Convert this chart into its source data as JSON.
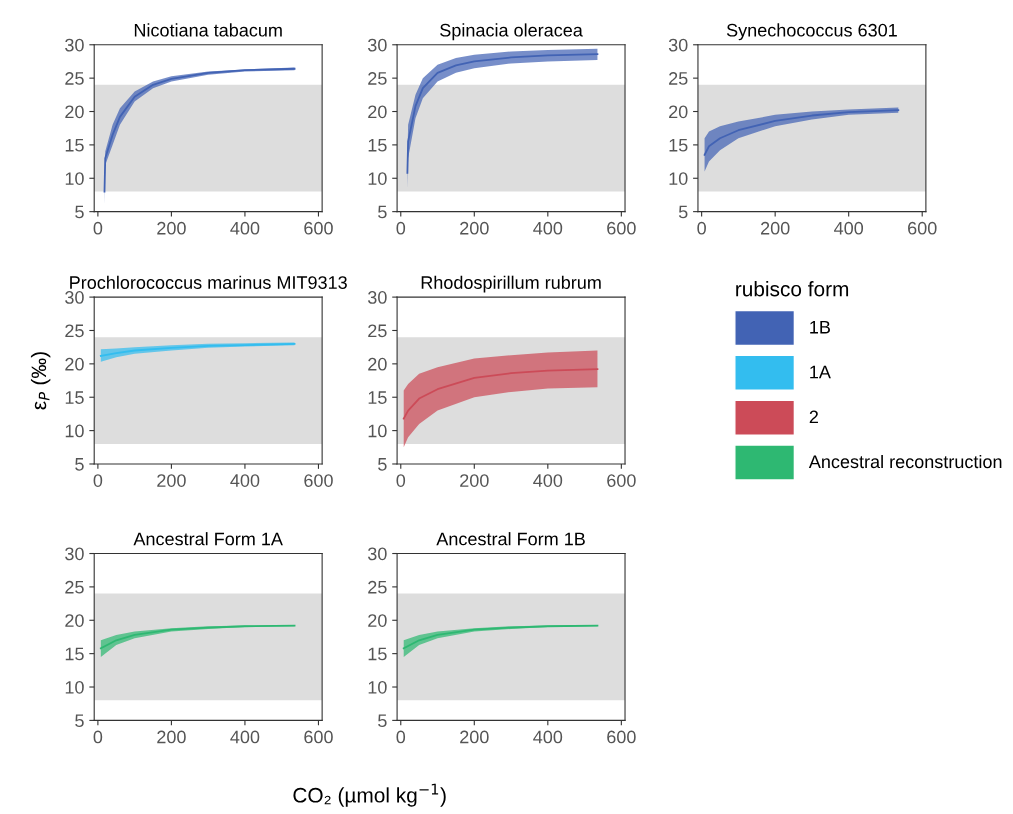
{
  "chart_data": [
    {
      "type": "line",
      "title": "Nicotiana tabacum",
      "xlim": [
        -10,
        610
      ],
      "ylim": [
        5,
        30
      ],
      "xticks": [
        0,
        200,
        400,
        600
      ],
      "yticks": [
        5,
        10,
        15,
        20,
        25,
        30
      ],
      "bands": [
        {
          "axis": "y",
          "from": 8,
          "to": 24,
          "color": "#dddddd"
        }
      ],
      "series": [
        {
          "name": "1B",
          "color": "#4263b4",
          "x": [
            18,
            20,
            40,
            60,
            100,
            150,
            200,
            300,
            400,
            535
          ],
          "lower": [
            6,
            12,
            15,
            18,
            21.5,
            23.5,
            24.5,
            25.5,
            26,
            26.2
          ],
          "upper": [
            10,
            14,
            18,
            20.5,
            23,
            24.5,
            25.3,
            26,
            26.3,
            26.6
          ],
          "values": [
            8,
            13,
            16.5,
            19.2,
            22.2,
            24,
            24.9,
            25.8,
            26.2,
            26.4
          ]
        }
      ]
    },
    {
      "type": "line",
      "title": "Spinacia oleracea",
      "xlim": [
        -10,
        610
      ],
      "ylim": [
        5,
        30
      ],
      "xticks": [
        0,
        200,
        400,
        600
      ],
      "yticks": [
        5,
        10,
        15,
        20,
        25,
        30
      ],
      "bands": [
        {
          "axis": "y",
          "from": 8,
          "to": 24,
          "color": "#dddddd"
        }
      ],
      "series": [
        {
          "name": "1B",
          "color": "#4263b4",
          "x": [
            18,
            20,
            40,
            60,
            100,
            150,
            200,
            300,
            400,
            535
          ],
          "lower": [
            8.5,
            13,
            19,
            22,
            24.5,
            25.8,
            26.5,
            27.2,
            27.5,
            27.7
          ],
          "upper": [
            13,
            18,
            22.5,
            25,
            27,
            28,
            28.5,
            29,
            29.2,
            29.4
          ],
          "values": [
            10.8,
            15.5,
            20.8,
            23.5,
            25.8,
            26.9,
            27.5,
            28.1,
            28.4,
            28.6
          ]
        }
      ]
    },
    {
      "type": "line",
      "title": "Synechococcus 6301",
      "xlim": [
        -10,
        610
      ],
      "ylim": [
        5,
        30
      ],
      "xticks": [
        0,
        200,
        400,
        600
      ],
      "yticks": [
        5,
        10,
        15,
        20,
        25,
        30
      ],
      "bands": [
        {
          "axis": "y",
          "from": 8,
          "to": 24,
          "color": "#dddddd"
        }
      ],
      "series": [
        {
          "name": "1B",
          "color": "#4263b4",
          "x": [
            8,
            20,
            50,
            100,
            200,
            300,
            400,
            535
          ],
          "lower": [
            11,
            12.5,
            14.2,
            16,
            17.8,
            18.8,
            19.5,
            19.8
          ],
          "upper": [
            16,
            17,
            17.8,
            18.5,
            19.5,
            20,
            20.3,
            20.6
          ],
          "values": [
            13.5,
            14.8,
            16,
            17.2,
            18.6,
            19.4,
            19.9,
            20.2
          ]
        }
      ]
    },
    {
      "type": "line",
      "title": "Prochlorococcus marinus MIT9313",
      "ylabel": "ε$_{P}$ (‰)",
      "xlim": [
        -10,
        610
      ],
      "ylim": [
        5,
        30
      ],
      "xticks": [
        0,
        200,
        400,
        600
      ],
      "yticks": [
        5,
        10,
        15,
        20,
        25,
        30
      ],
      "bands": [
        {
          "axis": "y",
          "from": 8,
          "to": 24,
          "color": "#dddddd"
        }
      ],
      "series": [
        {
          "name": "1A",
          "color": "#33bdef",
          "x": [
            8,
            50,
            100,
            200,
            300,
            400,
            535
          ],
          "lower": [
            20.3,
            21,
            21.5,
            22,
            22.4,
            22.6,
            22.8
          ],
          "upper": [
            22.2,
            22.3,
            22.5,
            22.8,
            23,
            23.1,
            23.2
          ],
          "values": [
            21.2,
            21.6,
            22,
            22.4,
            22.7,
            22.8,
            23
          ]
        }
      ]
    },
    {
      "type": "line",
      "title": "Rhodospirillum rubrum",
      "xlim": [
        -10,
        610
      ],
      "ylim": [
        5,
        30
      ],
      "xticks": [
        0,
        200,
        400,
        600
      ],
      "yticks": [
        5,
        10,
        15,
        20,
        25,
        30
      ],
      "legend": "right",
      "legend_title": "rubisco form",
      "bands": [
        {
          "axis": "y",
          "from": 8,
          "to": 24,
          "color": "#dddddd"
        }
      ],
      "series": [
        {
          "name": "2",
          "color": "#cc4b58",
          "x": [
            8,
            20,
            50,
            100,
            200,
            300,
            400,
            535
          ],
          "lower": [
            7.5,
            9,
            11,
            13,
            15,
            15.8,
            16.3,
            16.5
          ],
          "upper": [
            16,
            17,
            18.5,
            19.5,
            20.8,
            21.3,
            21.7,
            22
          ],
          "values": [
            11.8,
            13,
            14.8,
            16.2,
            17.9,
            18.6,
            19,
            19.2
          ]
        }
      ]
    },
    {
      "type": "line",
      "title": "Ancestral Form 1A",
      "xlim": [
        -10,
        610
      ],
      "ylim": [
        5,
        30
      ],
      "xticks": [
        0,
        200,
        400,
        600
      ],
      "yticks": [
        5,
        10,
        15,
        20,
        25,
        30
      ],
      "bands": [
        {
          "axis": "y",
          "from": 8,
          "to": 24,
          "color": "#dddddd"
        }
      ],
      "series": [
        {
          "name": "Ancestral reconstruction",
          "color": "#2eb872",
          "x": [
            8,
            50,
            100,
            200,
            300,
            400,
            535
          ],
          "lower": [
            14.5,
            16.3,
            17.3,
            18.3,
            18.7,
            19,
            19.1
          ],
          "upper": [
            17,
            17.8,
            18.3,
            18.8,
            19.1,
            19.2,
            19.3
          ],
          "values": [
            15.8,
            17,
            17.8,
            18.6,
            18.9,
            19.1,
            19.2
          ]
        }
      ]
    },
    {
      "type": "line",
      "title": "Ancestral Form 1B",
      "xlabel": "CO₂ (µmol kg$^{−1}$)",
      "xlim": [
        -10,
        610
      ],
      "ylim": [
        5,
        30
      ],
      "xticks": [
        0,
        200,
        400,
        600
      ],
      "yticks": [
        5,
        10,
        15,
        20,
        25,
        30
      ],
      "bands": [
        {
          "axis": "y",
          "from": 8,
          "to": 24,
          "color": "#dddddd"
        }
      ],
      "series": [
        {
          "name": "Ancestral reconstruction",
          "color": "#2eb872",
          "x": [
            8,
            50,
            100,
            200,
            300,
            400,
            535
          ],
          "lower": [
            14.5,
            16.3,
            17.3,
            18.3,
            18.7,
            19,
            19.1
          ],
          "upper": [
            17,
            17.8,
            18.3,
            18.8,
            19.1,
            19.2,
            19.3
          ],
          "values": [
            15.8,
            17,
            17.8,
            18.6,
            18.9,
            19.1,
            19.2
          ]
        }
      ]
    }
  ]
}
